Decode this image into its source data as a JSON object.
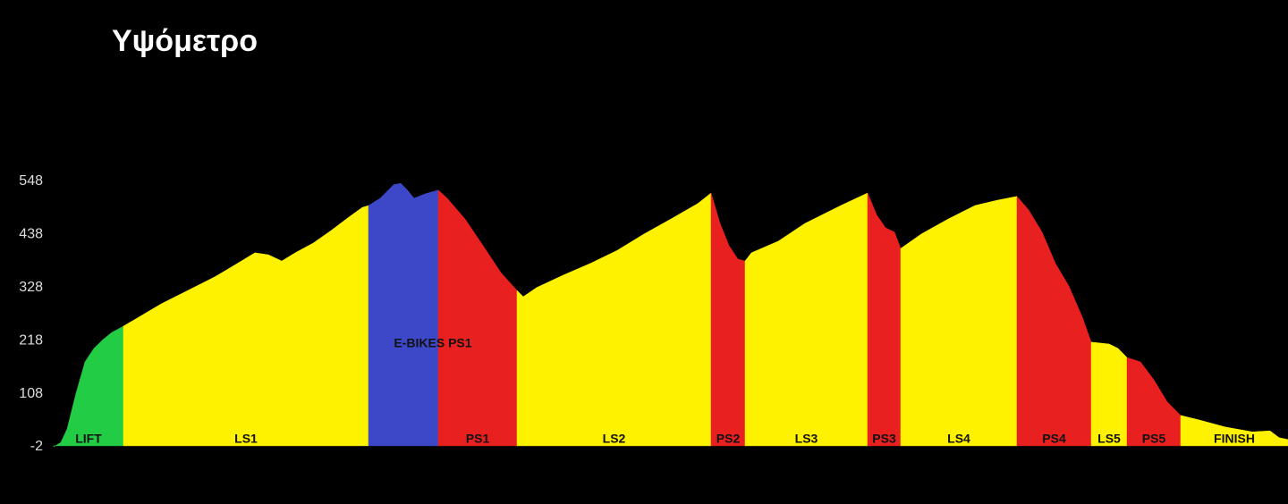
{
  "chart_data": {
    "type": "area",
    "title": "Υψόμετρο",
    "ylim": [
      -2,
      548
    ],
    "yticks": [
      -2,
      108,
      218,
      328,
      438,
      548
    ],
    "xlim": [
      0,
      138
    ],
    "grid": false,
    "series": [
      {
        "name": "LIFT",
        "color": "#22cc44",
        "x": [
          0,
          0.8,
          1.5,
          2.5,
          3.5,
          4.5,
          5.5,
          6.5,
          7.8
        ],
        "values": [
          -2,
          7,
          35,
          109,
          174,
          202,
          220,
          235,
          248
        ]
      },
      {
        "name": "LS1",
        "color": "#fff200",
        "x": [
          7.8,
          10,
          12,
          15,
          18,
          20,
          22.5,
          24,
          25.5,
          27,
          29,
          31,
          33,
          34.5,
          35.2
        ],
        "values": [
          248,
          272,
          294,
          322,
          350,
          372,
          400,
          396,
          383,
          400,
          420,
          446,
          474,
          494,
          498
        ]
      },
      {
        "name": "E-BIKES PS1",
        "color": "#3d48c8",
        "x": [
          35.2,
          36.5,
          38,
          38.8,
          39.5,
          40.3,
          41.5,
          43
        ],
        "values": [
          498,
          513,
          541,
          544,
          531,
          513,
          522,
          530
        ]
      },
      {
        "name": "PS1",
        "color": "#e82020",
        "x": [
          43,
          44,
          46,
          48,
          50,
          51.8
        ],
        "values": [
          530,
          513,
          470,
          415,
          359,
          322
        ]
      },
      {
        "name": "LS2",
        "color": "#fff200",
        "x": [
          51.8,
          52.5,
          54,
          57,
          60,
          63,
          66,
          69,
          72,
          73.5
        ],
        "values": [
          322,
          309,
          328,
          354,
          378,
          405,
          439,
          470,
          502,
          524
        ]
      },
      {
        "name": "PS2",
        "color": "#e82020",
        "x": [
          73.5,
          74.5,
          75.5,
          76.5,
          77.3
        ],
        "values": [
          524,
          461,
          415,
          387,
          383
        ]
      },
      {
        "name": "LS3",
        "color": "#fff200",
        "x": [
          77.3,
          78,
          81,
          84,
          88,
          91
        ],
        "values": [
          383,
          400,
          424,
          461,
          498,
          524
        ]
      },
      {
        "name": "PS3",
        "color": "#e82020",
        "x": [
          91,
          92,
          93,
          94,
          94.7
        ],
        "values": [
          524,
          479,
          452,
          443,
          409
        ]
      },
      {
        "name": "LS4",
        "color": "#fff200",
        "x": [
          94.7,
          97,
          100,
          103,
          105.5,
          107.7
        ],
        "values": [
          409,
          439,
          470,
          498,
          509,
          517
        ]
      },
      {
        "name": "PS4",
        "color": "#e82020",
        "x": [
          107.7,
          109,
          110.5,
          112,
          113.5,
          115,
          116
        ],
        "values": [
          517,
          489,
          443,
          378,
          331,
          267,
          215
        ]
      },
      {
        "name": "LS5",
        "color": "#fff200",
        "x": [
          116,
          118,
          119,
          120
        ],
        "values": [
          215,
          211,
          202,
          183
        ]
      },
      {
        "name": "PS5",
        "color": "#e82020",
        "x": [
          120,
          121.5,
          123,
          124.5,
          126
        ],
        "values": [
          183,
          174,
          137,
          91,
          63
        ]
      },
      {
        "name": "FINISH",
        "color": "#fff200",
        "x": [
          126,
          128,
          131,
          134,
          136,
          137,
          138
        ],
        "values": [
          63,
          54,
          39,
          29,
          31,
          17,
          13
        ]
      }
    ]
  }
}
